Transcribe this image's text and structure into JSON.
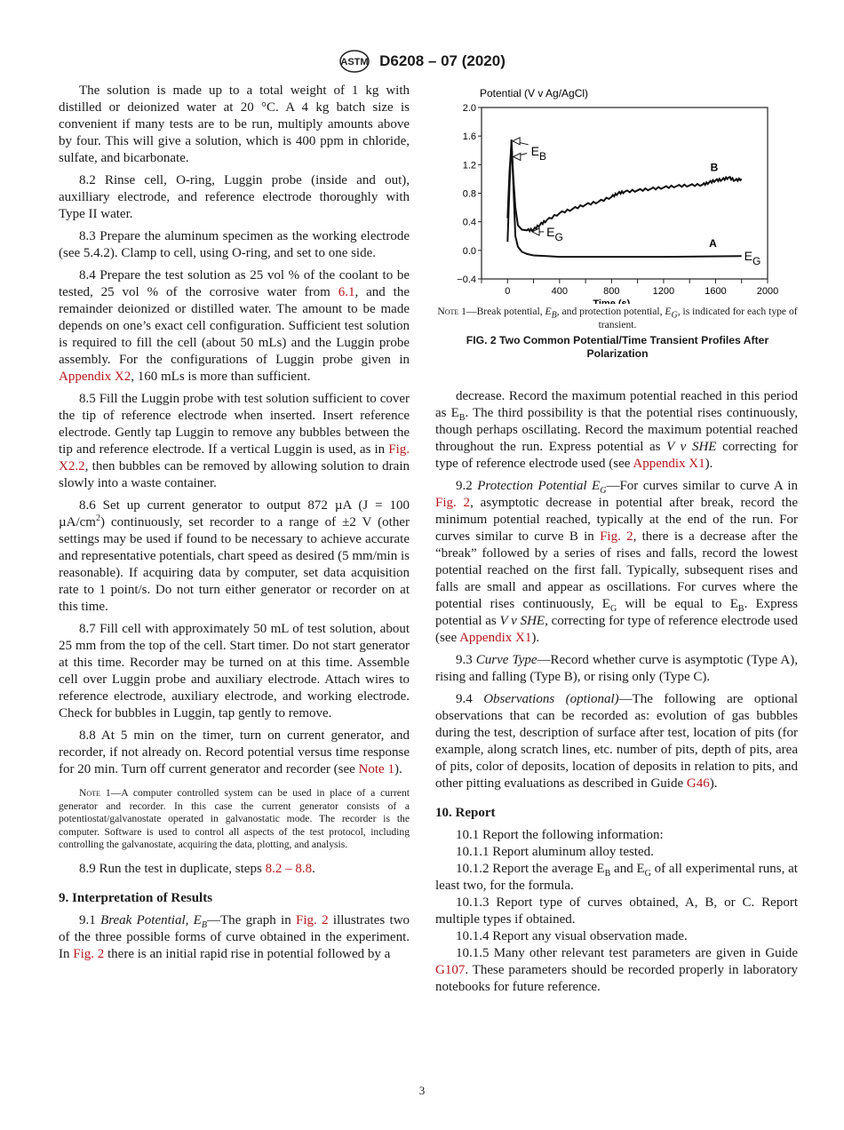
{
  "header": {
    "logo_text": "ASTM",
    "doc_id": "D6208 – 07 (2020)"
  },
  "left_column": [
    {
      "type": "p",
      "runs": [
        [
          "The solution is made up to a total weight of 1 kg with distilled or deionized water at 20 °C. A 4 kg batch size is convenient if many tests are to be run, multiply amounts above by four. This will give a solution, which is 400 ppm in chloride, sulfate, and bicarbonate.",
          ""
        ]
      ]
    },
    {
      "type": "p",
      "runs": [
        [
          "8.2 Rinse cell, O-ring, Luggin probe (inside and out), auxilliary electrode, and reference electrode thoroughly with Type II water.",
          ""
        ]
      ]
    },
    {
      "type": "p",
      "runs": [
        [
          "8.3 Prepare the aluminum specimen as the working electrode (see 5.4.2). Clamp to cell, using O-ring, and set to one side.",
          ""
        ]
      ]
    },
    {
      "type": "p",
      "runs": [
        [
          "8.4 Prepare the test solution as 25 vol % of the coolant to be tested, 25 vol % of the corrosive water from ",
          ""
        ],
        [
          "6.1",
          "link"
        ],
        [
          ", and the remainder deionized or distilled water. The amount to be made depends on one’s exact cell configuration. Sufficient test solution is required to fill the cell (about 50 mLs) and the Luggin probe assembly. For the configurations of Luggin probe given in ",
          ""
        ],
        [
          "Appendix X2",
          "link"
        ],
        [
          ", 160 mLs is more than sufficient.",
          ""
        ]
      ]
    },
    {
      "type": "p",
      "runs": [
        [
          "8.5 Fill the Luggin probe with test solution sufficient to cover the tip of reference electrode when inserted. Insert reference electrode. Gently tap Luggin to remove any bubbles between the tip and reference electrode. If a vertical Luggin is used, as in ",
          ""
        ],
        [
          "Fig. X2.2",
          "link"
        ],
        [
          ", then bubbles can be removed by allowing solution to drain slowly into a waste container.",
          ""
        ]
      ]
    },
    {
      "type": "p",
      "runs": [
        [
          "8.6 Set up current generator to output 872 µA (J = 100 µA/cm",
          ""
        ],
        [
          "2",
          "sup"
        ],
        [
          ") continuously, set recorder to a range of ±2 V (other settings may be used if found to be necessary to achieve accurate and representative potentials, chart speed as desired (5 mm/min is reasonable). If acquiring data by computer, set data acquisition rate to 1 point/s. Do not turn either generator or recorder on at this time.",
          ""
        ]
      ]
    },
    {
      "type": "p",
      "runs": [
        [
          "8.7 Fill cell with approximately 50 mL of test solution, about 25 mm from the top of the cell. Start timer. Do not start generator at this time. Recorder may be turned on at this time. Assemble cell over Luggin probe and auxiliary electrode. Attach wires to reference electrode, auxiliary electrode, and working electrode. Check for bubbles in Luggin, tap gently to remove.",
          ""
        ]
      ]
    },
    {
      "type": "p",
      "runs": [
        [
          "8.8 At 5 min on the timer, turn on current generator, and recorder, if not already on. Record potential versus time response for 20 min. Turn off current generator and recorder (see ",
          ""
        ],
        [
          "Note 1",
          "link"
        ],
        [
          ").",
          ""
        ]
      ]
    },
    {
      "type": "note",
      "runs": [
        [
          "Note",
          "sc"
        ],
        [
          " 1—A computer controlled system can be used in place of a current generator and recorder. In this case the current generator consists of a potentiostat/galvanostate operated in galvanostatic mode. The recorder is the computer. Software is used to control all aspects of the test protocol, including controlling the galvanostate, acquiring the data, plotting, and analysis.",
          ""
        ]
      ]
    },
    {
      "type": "p",
      "runs": [
        [
          "8.9 Run the test in duplicate, steps ",
          ""
        ],
        [
          "8.2 – 8.8",
          "link"
        ],
        [
          ".",
          ""
        ]
      ]
    },
    {
      "type": "h",
      "runs": [
        [
          "9. Interpretation of Results",
          ""
        ]
      ]
    },
    {
      "type": "p",
      "runs": [
        [
          "9.1 ",
          ""
        ],
        [
          "Break Potential, E",
          "i"
        ],
        [
          "B",
          "isub"
        ],
        [
          "—The graph in ",
          ""
        ],
        [
          "Fig. 2",
          "link"
        ],
        [
          " illustrates two of the three possible forms of curve obtained in the experiment. In ",
          ""
        ],
        [
          "Fig. 2",
          "link"
        ],
        [
          " there is an initial rapid rise in potential followed by a",
          ""
        ]
      ]
    }
  ],
  "right_column": [
    {
      "type": "p",
      "runs": [
        [
          "decrease. Record the maximum potential reached in this period as E",
          ""
        ],
        [
          "B",
          "sub"
        ],
        [
          ". The third possibility is that the potential rises continuously, though perhaps oscillating. Record the maximum potential reached throughout the run. Express potential as ",
          ""
        ],
        [
          "V v SHE",
          "i"
        ],
        [
          " correcting for type of reference electrode used (see ",
          ""
        ],
        [
          "Appendix X1",
          "link"
        ],
        [
          ").",
          ""
        ]
      ]
    },
    {
      "type": "p",
      "runs": [
        [
          "9.2 ",
          ""
        ],
        [
          "Protection Potential E",
          "i"
        ],
        [
          "G",
          "isub"
        ],
        [
          "—For curves similar to curve A in ",
          ""
        ],
        [
          "Fig. 2",
          "link"
        ],
        [
          ", asymptotic decrease in potential after break, record the minimum potential reached, typically at the end of the run. For curves similar to curve B in ",
          ""
        ],
        [
          "Fig. 2",
          "link"
        ],
        [
          ", there is a decrease after the “break” followed by a series of rises and falls, record the lowest potential reached on the first fall. Typically, subsequent rises and falls are small and appear as oscillations. For curves where the potential rises continuously, E",
          ""
        ],
        [
          "G",
          "sub"
        ],
        [
          " will be equal to E",
          ""
        ],
        [
          "B",
          "sub"
        ],
        [
          ". Express potential as ",
          ""
        ],
        [
          "V v SHE",
          "i"
        ],
        [
          ", correcting for type of reference electrode used (see ",
          ""
        ],
        [
          "Appendix X1",
          "link"
        ],
        [
          ").",
          ""
        ]
      ]
    },
    {
      "type": "p",
      "runs": [
        [
          "9.3 ",
          ""
        ],
        [
          "Curve Type",
          "i"
        ],
        [
          "—Record whether curve is asymptotic (Type A), rising and falling (Type B), or rising only (Type C).",
          ""
        ]
      ]
    },
    {
      "type": "p",
      "runs": [
        [
          "9.4 ",
          ""
        ],
        [
          "Observations (optional)",
          "i"
        ],
        [
          "—The following are optional observations that can be recorded as: evolution of gas bubbles during the test, description of surface after test, location of pits (for example, along scratch lines, etc. number of pits, depth of pits, area of pits, color of deposits, location of deposits in relation to pits, and other pitting evaluations as described in Guide ",
          ""
        ],
        [
          "G46",
          "link"
        ],
        [
          ").",
          ""
        ]
      ]
    },
    {
      "type": "h",
      "runs": [
        [
          "10. Report",
          ""
        ]
      ]
    },
    {
      "type": "s",
      "runs": [
        [
          "10.1 Report the following information:",
          ""
        ]
      ]
    },
    {
      "type": "s",
      "runs": [
        [
          "10.1.1 Report aluminum alloy tested.",
          ""
        ]
      ]
    },
    {
      "type": "s",
      "runs": [
        [
          "10.1.2 Report the average E",
          ""
        ],
        [
          "B",
          "sub"
        ],
        [
          " and E",
          ""
        ],
        [
          "G",
          "sub"
        ],
        [
          " of all experimental runs, at least two, for the formula.",
          ""
        ]
      ]
    },
    {
      "type": "s",
      "runs": [
        [
          "10.1.3 Report type of curves obtained, A, B, or C. Report multiple types if obtained.",
          ""
        ]
      ]
    },
    {
      "type": "s",
      "runs": [
        [
          "10.1.4 Report any visual observation made.",
          ""
        ]
      ]
    },
    {
      "type": "s",
      "runs": [
        [
          "10.1.5 Many other relevant test parameters are given in Guide ",
          ""
        ],
        [
          "G107",
          "link"
        ],
        [
          ". These parameters should be recorded properly in laboratory notebooks for future reference.",
          ""
        ]
      ]
    }
  ],
  "figure": {
    "note_label": "Note",
    "note_text": " 1—Break potential, E_B, and protection potential, E_G, is indicated for each type of transient.",
    "caption": "FIG. 2 Two Common Potential/Time Transient Profiles After Polarization"
  },
  "chart_data": {
    "type": "line",
    "title": "",
    "ylabel": "Potential (V v Ag/AgCl)",
    "xlabel": "Time (s)",
    "xlim": [
      -200,
      2000
    ],
    "ylim": [
      -0.4,
      2.0
    ],
    "xticks": [
      "0",
      "400",
      "800",
      "1200",
      "1600",
      "2000"
    ],
    "yticks": [
      "2.0",
      "1.6",
      "1.2",
      "0.8",
      "0.4",
      "0.0",
      "−0.4"
    ],
    "grid": false,
    "series": [
      {
        "name": "A",
        "x": [
          0,
          15,
          30,
          45,
          60,
          80,
          110,
          150,
          200,
          300,
          400,
          800,
          1200,
          1800
        ],
        "y": [
          0.12,
          0.9,
          1.55,
          0.9,
          0.2,
          0.05,
          -0.02,
          -0.05,
          -0.07,
          -0.08,
          -0.09,
          -0.09,
          -0.09,
          -0.08
        ]
      },
      {
        "name": "B",
        "x": [
          0,
          15,
          30,
          45,
          60,
          80,
          110,
          150,
          200,
          250,
          300,
          400,
          500,
          600,
          700,
          800,
          850,
          900,
          1000,
          1100,
          1200,
          1300,
          1400,
          1500,
          1550,
          1600,
          1650,
          1700,
          1750,
          1800
        ],
        "y": [
          0.45,
          1.1,
          1.5,
          1.0,
          0.6,
          0.35,
          0.29,
          0.28,
          0.29,
          0.36,
          0.42,
          0.52,
          0.58,
          0.64,
          0.68,
          0.75,
          0.8,
          0.82,
          0.84,
          0.86,
          0.88,
          0.9,
          0.91,
          0.92,
          0.95,
          0.98,
          0.99,
          1.02,
          0.98,
          1.0
        ]
      }
    ],
    "annotations": [
      "E_B",
      "E_G",
      "E_G",
      "A",
      "B"
    ]
  },
  "page_number": "3"
}
